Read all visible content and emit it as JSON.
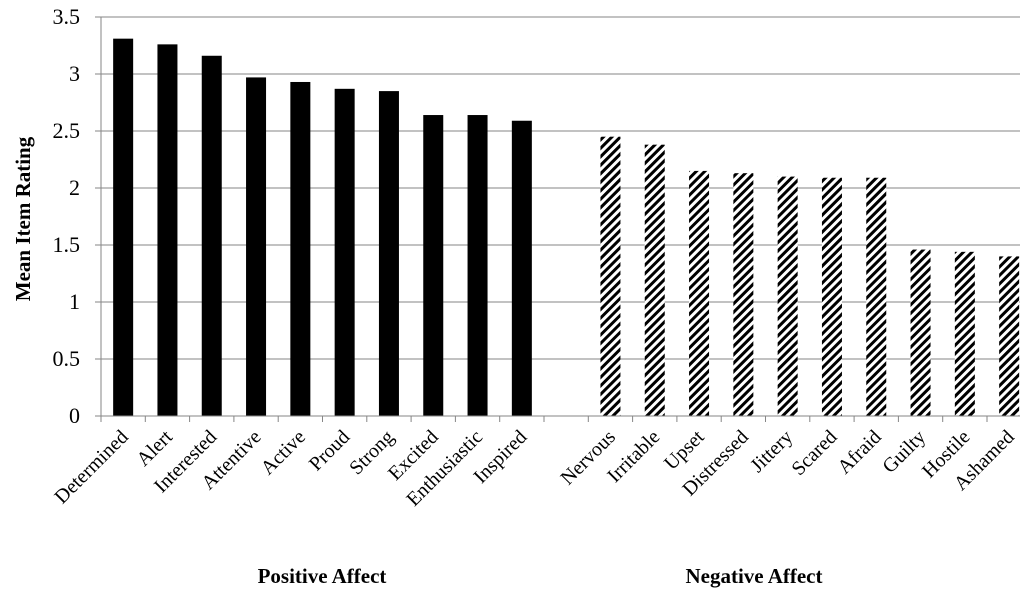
{
  "chart_data": {
    "type": "bar",
    "ylabel": "Mean Item Rating",
    "ylim": [
      0,
      3.5
    ],
    "yticks": [
      "0",
      "0.5",
      "1",
      "1.5",
      "2",
      "2.5",
      "3",
      "3.5"
    ],
    "ytick_values": [
      0,
      0.5,
      1,
      1.5,
      2,
      2.5,
      3,
      3.5
    ],
    "grid": true,
    "legend": "none",
    "groups": [
      {
        "label": "Positive Affect",
        "fill": "#000000",
        "pattern": "solid",
        "categories": [
          "Determined",
          "Alert",
          "Interested",
          "Attentive",
          "Active",
          "Proud",
          "Strong",
          "Excited",
          "Enthusiastic",
          "Inspired"
        ],
        "values": [
          3.31,
          3.26,
          3.16,
          2.97,
          2.93,
          2.87,
          2.85,
          2.64,
          2.64,
          2.59
        ]
      },
      {
        "label": "Negative Affect",
        "fill": "#000000",
        "pattern": "diagonal-hatch",
        "categories": [
          "Nervous",
          "Irritable",
          "Upset",
          "Distressed",
          "Jittery",
          "Scared",
          "Afraid",
          "Guilty",
          "Hostile",
          "Ashamed"
        ],
        "values": [
          2.45,
          2.38,
          2.15,
          2.13,
          2.1,
          2.09,
          2.09,
          1.46,
          1.44,
          1.4
        ]
      }
    ]
  }
}
